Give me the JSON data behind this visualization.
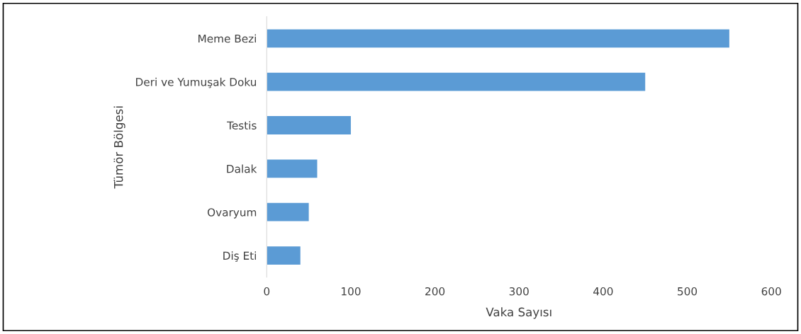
{
  "chart_data": {
    "type": "bar",
    "orientation": "horizontal",
    "xlabel": "Vaka Sayısı",
    "ylabel": "Tümör Bölgesi",
    "categories": [
      "Meme Bezi",
      "Deri ve Yumuşak Doku",
      "Testis",
      "Dalak",
      "Ovaryum",
      "Diş Eti"
    ],
    "values": [
      550,
      450,
      100,
      60,
      50,
      40
    ],
    "color": "#5b9bd5",
    "xlim": [
      0,
      600
    ],
    "xticks": [
      0,
      100,
      200,
      300,
      400,
      500,
      600
    ],
    "grid": false
  }
}
